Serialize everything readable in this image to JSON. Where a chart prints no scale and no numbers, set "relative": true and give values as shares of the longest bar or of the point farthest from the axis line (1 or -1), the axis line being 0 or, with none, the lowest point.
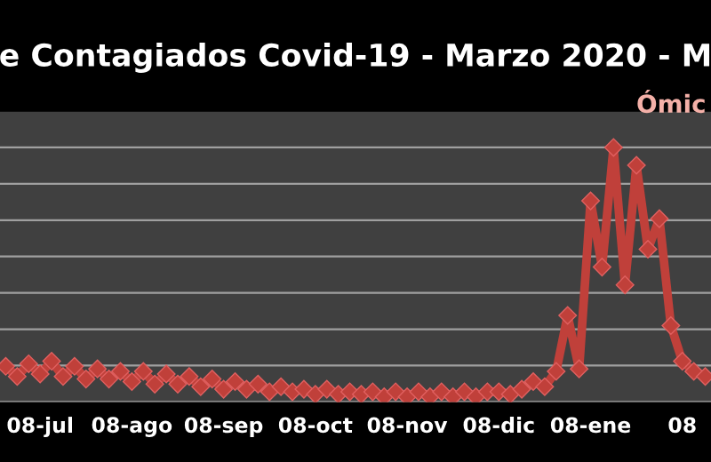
{
  "chart_data": {
    "type": "line",
    "title": "e Contagiados Covid-19 - Marzo 2020 - M",
    "relative": true,
    "marker": "diamond",
    "grid": "y",
    "legend": false,
    "categories": [
      null,
      null,
      null,
      "08-jul",
      null,
      null,
      null,
      null,
      null,
      null,
      null,
      "08-ago",
      null,
      null,
      null,
      null,
      null,
      null,
      null,
      "08-sep",
      null,
      null,
      null,
      null,
      null,
      null,
      null,
      "08-oct",
      null,
      null,
      null,
      null,
      null,
      null,
      null,
      "08-nov",
      null,
      null,
      null,
      null,
      null,
      null,
      null,
      "08-dic",
      null,
      null,
      null,
      null,
      null,
      null,
      null,
      "08-ene",
      null,
      null,
      null,
      null,
      null,
      null,
      null,
      "08",
      null,
      null
    ],
    "series": [
      {
        "color": "#c0403a",
        "values": [
          0.14,
          0.1,
          0.15,
          0.11,
          0.16,
          0.1,
          0.14,
          0.09,
          0.13,
          0.09,
          0.12,
          0.08,
          0.12,
          0.07,
          0.11,
          0.07,
          0.1,
          0.06,
          0.09,
          0.05,
          0.08,
          0.05,
          0.07,
          0.04,
          0.06,
          0.04,
          0.05,
          0.03,
          0.05,
          0.03,
          0.04,
          0.03,
          0.04,
          0.02,
          0.04,
          0.02,
          0.04,
          0.02,
          0.04,
          0.02,
          0.04,
          0.02,
          0.04,
          0.04,
          0.03,
          0.05,
          0.08,
          0.06,
          0.12,
          0.34,
          0.13,
          0.79,
          0.53,
          1.0,
          0.46,
          0.93,
          0.6,
          0.72,
          0.3,
          0.16,
          0.12,
          0.1
        ]
      }
    ],
    "annotations": [
      "Ómic"
    ]
  }
}
